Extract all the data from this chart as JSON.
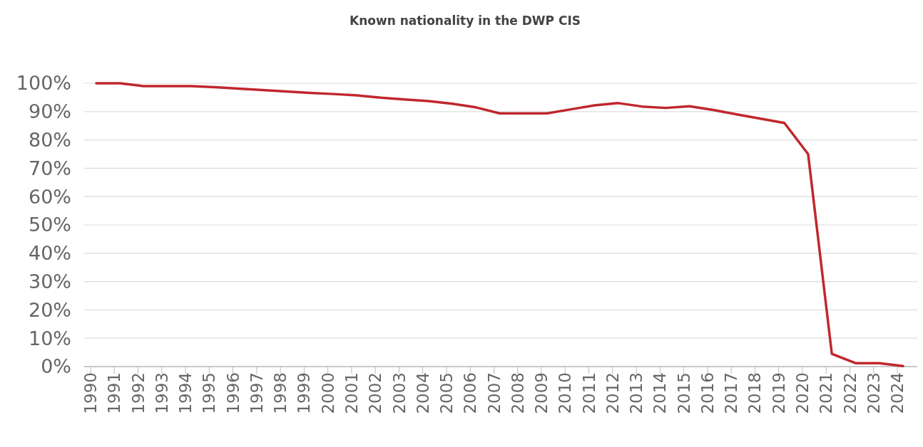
{
  "chart_data": {
    "type": "line",
    "title": "Known nationality in the DWP CIS",
    "categories": [
      "1990",
      "1991",
      "1992",
      "1993",
      "1994",
      "1995",
      "1996",
      "1997",
      "1998",
      "1999",
      "2000",
      "2001",
      "2002",
      "2003",
      "2004",
      "2005",
      "2006",
      "2007",
      "2008",
      "2009",
      "2010",
      "2011",
      "2012",
      "2013",
      "2014",
      "2015",
      "2016",
      "2017",
      "2018",
      "2019",
      "2020",
      "2021",
      "2022",
      "2023",
      "2024"
    ],
    "series": [
      {
        "color": "#c0272d",
        "values": [
          100,
          100,
          99,
          99,
          99,
          98.6,
          98.1,
          97.6,
          97.1,
          96.6,
          96.2,
          95.7,
          94.9,
          94.3,
          93.7,
          92.8,
          91.5,
          89.4,
          89.4,
          89.4,
          90.8,
          92.2,
          93,
          91.8,
          91.3,
          91.9,
          90.6,
          89,
          87.5,
          86,
          75,
          4.5,
          1.2,
          1.2,
          0.2
        ]
      }
    ],
    "ylim": [
      0,
      100
    ],
    "yticks": [
      {
        "value": 0,
        "label": "0%"
      },
      {
        "value": 10,
        "label": "10%"
      },
      {
        "value": 20,
        "label": "20%"
      },
      {
        "value": 30,
        "label": "30%"
      },
      {
        "value": 40,
        "label": "40%"
      },
      {
        "value": 50,
        "label": "50%"
      },
      {
        "value": 60,
        "label": "60%"
      },
      {
        "value": 70,
        "label": "70%"
      },
      {
        "value": 80,
        "label": "80%"
      },
      {
        "value": 90,
        "label": "90%"
      },
      {
        "value": 100,
        "label": "100%"
      }
    ],
    "grid": "y",
    "marker": "none",
    "line_style": "solid"
  }
}
